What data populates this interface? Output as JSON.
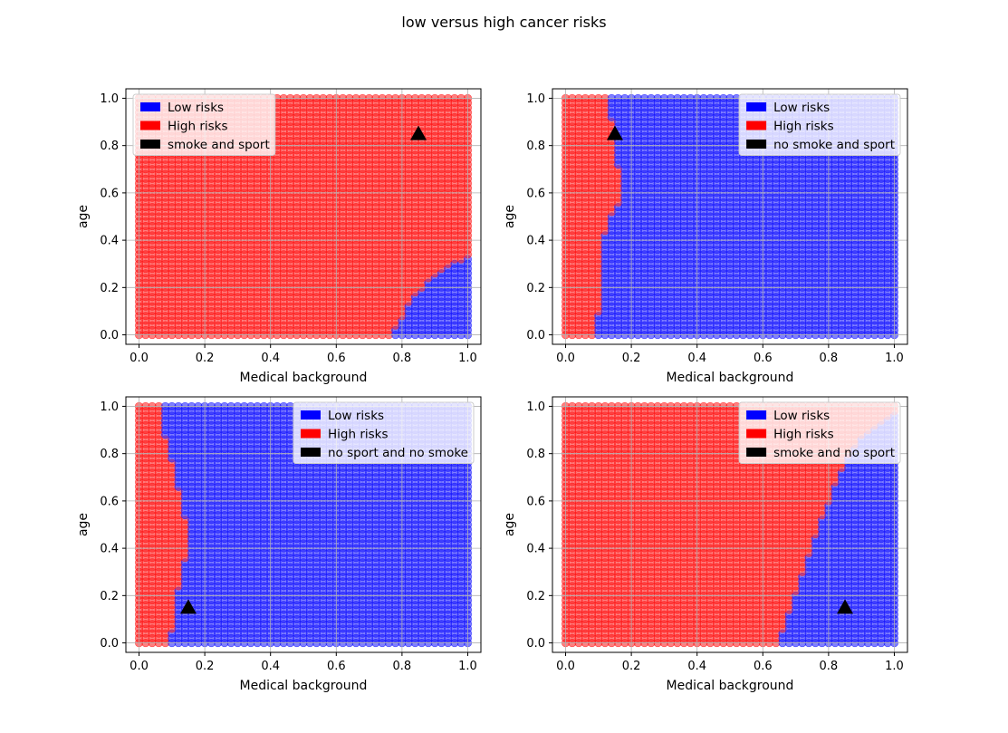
{
  "figure": {
    "title": "low versus high cancer risks"
  },
  "legend_entries": [
    {
      "label": "Low risks",
      "color": "#0000ff"
    },
    {
      "label": "High risks",
      "color": "#ff0000"
    }
  ],
  "colors": {
    "low_risk": "#0000ff",
    "high_risk": "#ff0000",
    "marker": "#000000",
    "grid": "#b0b0b0"
  },
  "chart_data": [
    {
      "type": "scatter",
      "xlabel": "Medical background",
      "ylabel": "age",
      "xlim": [
        -0.04,
        1.04
      ],
      "ylim": [
        -0.04,
        1.04
      ],
      "xticks": [
        "0.0",
        "0.2",
        "0.4",
        "0.6",
        "0.8",
        "1.0"
      ],
      "yticks": [
        "0.0",
        "0.2",
        "0.4",
        "0.6",
        "0.8",
        "1.0"
      ],
      "grid": true,
      "legend_position": "upper left",
      "marker_label": "smoke and sport",
      "marker_point": [
        0.85,
        0.85
      ],
      "grid_points": {
        "start": 0,
        "end": 1,
        "count": 51
      },
      "boundary_region": "low risk where medical background > boundary(age); high risk elsewhere",
      "boundary": {
        "age": [
          0.0,
          0.05,
          0.1,
          0.15,
          0.2,
          0.25,
          0.3,
          0.35
        ],
        "medical_background": [
          0.77,
          0.79,
          0.81,
          0.83,
          0.86,
          0.9,
          0.95,
          1.05
        ]
      }
    },
    {
      "type": "scatter",
      "xlabel": "Medical background",
      "ylabel": "age",
      "xlim": [
        -0.04,
        1.04
      ],
      "ylim": [
        -0.04,
        1.04
      ],
      "xticks": [
        "0.0",
        "0.2",
        "0.4",
        "0.6",
        "0.8",
        "1.0"
      ],
      "yticks": [
        "0.0",
        "0.2",
        "0.4",
        "0.6",
        "0.8",
        "1.0"
      ],
      "grid": true,
      "legend_position": "upper right",
      "marker_label": "no smoke and sport",
      "marker_point": [
        0.15,
        0.85
      ],
      "grid_points": {
        "start": 0,
        "end": 1,
        "count": 51
      },
      "boundary_region": "low risk where medical background > boundary(age); high risk elsewhere",
      "boundary": {
        "age": [
          0.0,
          0.1,
          0.2,
          0.3,
          0.4,
          0.5,
          0.55,
          0.6,
          0.7,
          0.8,
          0.9,
          1.0
        ],
        "medical_background": [
          0.095,
          0.1,
          0.105,
          0.11,
          0.115,
          0.13,
          0.16,
          0.16,
          0.16,
          0.155,
          0.14,
          0.125
        ]
      }
    },
    {
      "type": "scatter",
      "xlabel": "Medical background",
      "ylabel": "age",
      "xlim": [
        -0.04,
        1.04
      ],
      "ylim": [
        -0.04,
        1.04
      ],
      "xticks": [
        "0.0",
        "0.2",
        "0.4",
        "0.6",
        "0.8",
        "1.0"
      ],
      "yticks": [
        "0.0",
        "0.2",
        "0.4",
        "0.6",
        "0.8",
        "1.0"
      ],
      "grid": true,
      "legend_position": "upper right",
      "marker_label": "no sport and no smoke",
      "marker_point": [
        0.15,
        0.15
      ],
      "grid_points": {
        "start": 0,
        "end": 1,
        "count": 51
      },
      "boundary_region": "low risk where medical background > boundary(age); high risk elsewhere",
      "boundary": {
        "age": [
          0.0,
          0.05,
          0.1,
          0.2,
          0.3,
          0.4,
          0.5,
          0.6,
          0.7,
          0.8,
          0.9,
          1.0
        ],
        "medical_background": [
          0.08,
          0.1,
          0.1,
          0.11,
          0.135,
          0.145,
          0.145,
          0.13,
          0.11,
          0.095,
          0.075,
          0.06
        ]
      }
    },
    {
      "type": "scatter",
      "xlabel": "Medical background",
      "ylabel": "age",
      "xlim": [
        -0.04,
        1.04
      ],
      "ylim": [
        -0.04,
        1.04
      ],
      "xticks": [
        "0.0",
        "0.2",
        "0.4",
        "0.6",
        "0.8",
        "1.0"
      ],
      "yticks": [
        "0.0",
        "0.2",
        "0.4",
        "0.6",
        "0.8",
        "1.0"
      ],
      "grid": true,
      "legend_position": "upper right",
      "marker_label": "smoke and no sport",
      "marker_point": [
        0.85,
        0.15
      ],
      "grid_points": {
        "start": 0,
        "end": 1,
        "count": 51
      },
      "boundary_region": "low risk where medical background > boundary(age); high risk elsewhere",
      "boundary": {
        "age": [
          0.0,
          0.1,
          0.2,
          0.3,
          0.4,
          0.5,
          0.6,
          0.7,
          0.8,
          0.9,
          1.0
        ],
        "medical_background": [
          0.65,
          0.67,
          0.7,
          0.72,
          0.75,
          0.77,
          0.8,
          0.83,
          0.86,
          0.92,
          1.05
        ]
      }
    }
  ]
}
